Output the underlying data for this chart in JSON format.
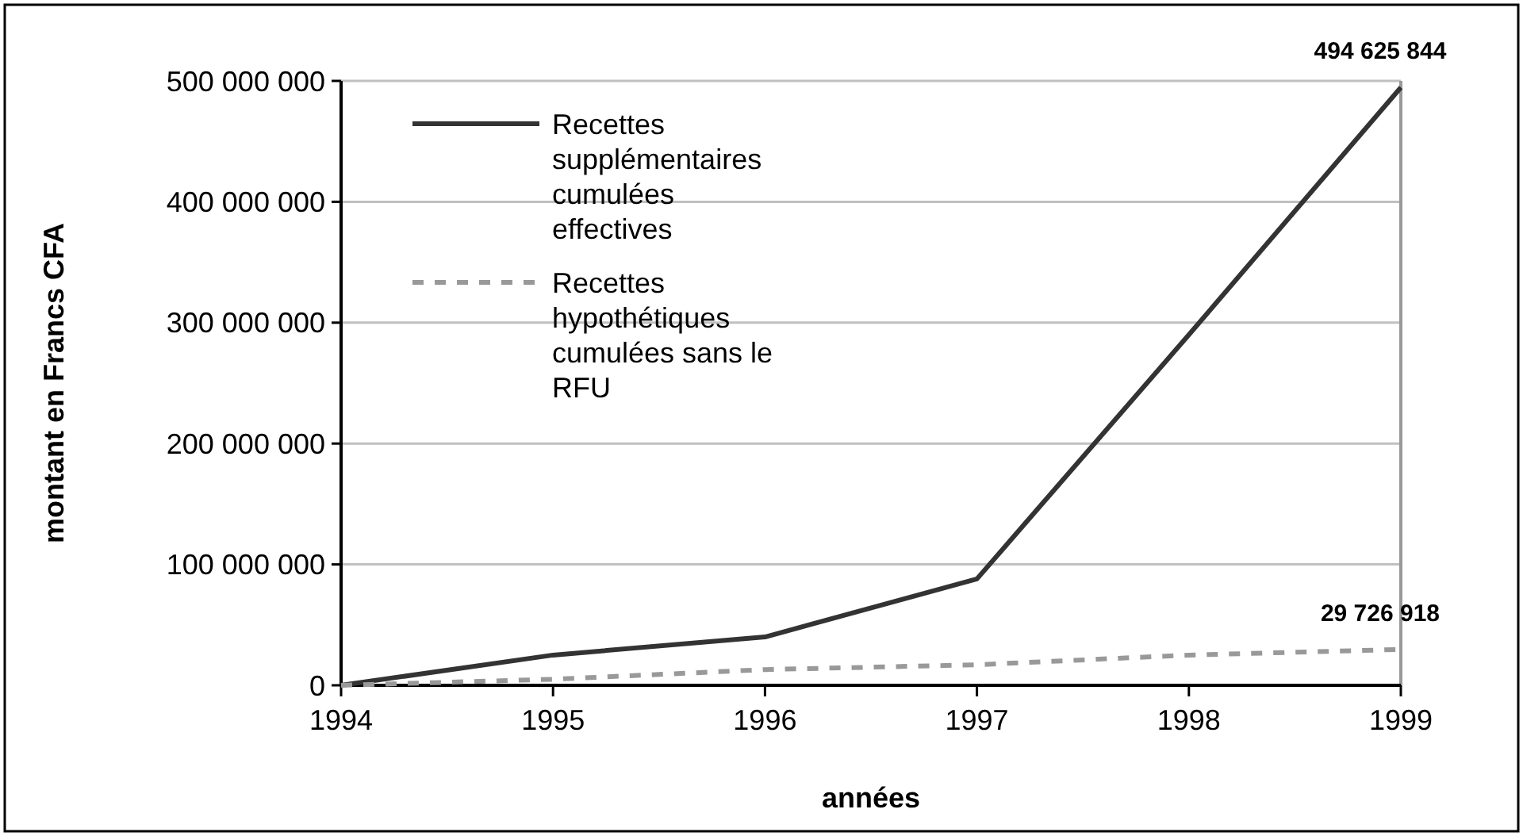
{
  "chart_data": {
    "type": "line",
    "xlabel": "années",
    "ylabel": "montant en Francs CFA",
    "x": [
      1994,
      1995,
      1996,
      1997,
      1998,
      1999
    ],
    "series": [
      {
        "name": "Recettes supplémentaires cumulées effectives",
        "color": "#333333",
        "line_style": "solid",
        "values": [
          0,
          25000000,
          40000000,
          88000000,
          290000000,
          494625844
        ],
        "value_labels": [
          null,
          null,
          null,
          null,
          null,
          "494 625 844"
        ]
      },
      {
        "name": "Recettes hypothétiques cumulées sans le RFU",
        "color": "#999999",
        "line_style": "dashed",
        "values": [
          0,
          5000000,
          13000000,
          17000000,
          25000000,
          29726918
        ],
        "value_labels": [
          null,
          null,
          null,
          null,
          null,
          "29 726 918"
        ]
      }
    ],
    "xlim": [
      1994,
      1999
    ],
    "xticks": [
      1994,
      1995,
      1996,
      1997,
      1998,
      1999
    ],
    "ylim": [
      0,
      500000000
    ],
    "yticks": [
      {
        "value": 0,
        "label": "0"
      },
      {
        "value": 100000000,
        "label": "100 000 000"
      },
      {
        "value": 200000000,
        "label": "200 000 000"
      },
      {
        "value": 300000000,
        "label": "300 000 000"
      },
      {
        "value": 400000000,
        "label": "400 000 000"
      },
      {
        "value": 500000000,
        "label": "500 000 000"
      }
    ],
    "grid": "y",
    "legend": "top left",
    "marker": "none"
  }
}
